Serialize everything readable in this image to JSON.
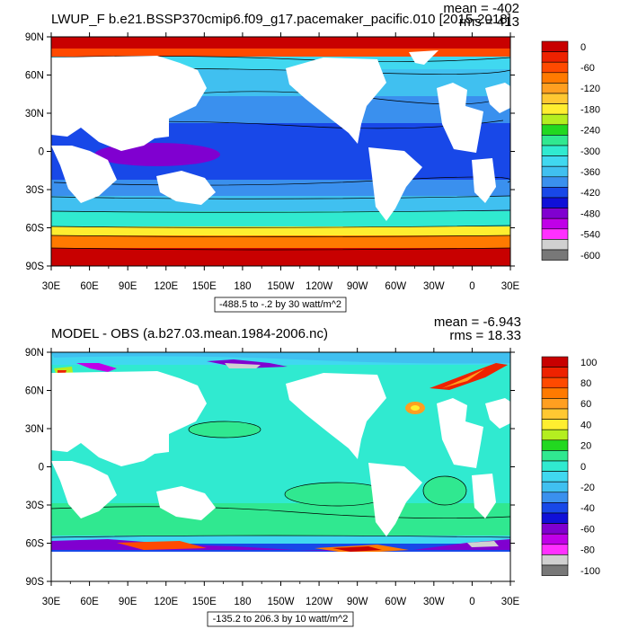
{
  "panels": [
    {
      "title": "LWUP_F b.e21.BSSP370cmip6.f09_g17.pacemaker_pacific.010 [2015-2018]",
      "mean": "mean = -402",
      "rms": "rms = 413",
      "contour_info": "-488.5 to -.2 by 30 watt/m^2",
      "colorbar_labels": [
        "0",
        "-60",
        "-120",
        "-180",
        "-240",
        "-300",
        "-360",
        "-420",
        "-480",
        "-540",
        "-600"
      ],
      "colors": [
        "#c80000",
        "#ee2200",
        "#ff4a00",
        "#ff7a00",
        "#ff9f20",
        "#ffc832",
        "#ffee30",
        "#b4ee20",
        "#22d820",
        "#30e890",
        "#30ead0",
        "#40d8f0",
        "#40c0f0",
        "#3a90ee",
        "#1848e8",
        "#1010d8",
        "#8000d0",
        "#c000e8",
        "#ff30ff",
        "#d0d0d0",
        "#787878"
      ]
    },
    {
      "title": "MODEL - OBS (a.b27.03.mean.1984-2006.nc)",
      "mean": "mean = -6.943",
      "rms": "rms = 18.33",
      "contour_info": "-135.2 to 206.3 by 10 watt/m^2",
      "colorbar_labels": [
        "100",
        "80",
        "60",
        "40",
        "20",
        "0",
        "-20",
        "-40",
        "-60",
        "-80",
        "-100"
      ],
      "colors": [
        "#c80000",
        "#ee2200",
        "#ff4a00",
        "#ff7a00",
        "#ff9f20",
        "#ffc832",
        "#ffee30",
        "#b4ee20",
        "#22d820",
        "#30e890",
        "#30ead0",
        "#40d8f0",
        "#40c0f0",
        "#3a90ee",
        "#1848e8",
        "#1010d8",
        "#8000d0",
        "#c000e8",
        "#ff30ff",
        "#d0d0d0",
        "#787878"
      ]
    }
  ],
  "lat_labels": [
    "90N",
    "60N",
    "30N",
    "0",
    "30S",
    "60S",
    "90S"
  ],
  "lon_labels": [
    "30E",
    "60E",
    "90E",
    "120E",
    "150E",
    "180",
    "150W",
    "120W",
    "90W",
    "60W",
    "30W",
    "0",
    "30E"
  ]
}
